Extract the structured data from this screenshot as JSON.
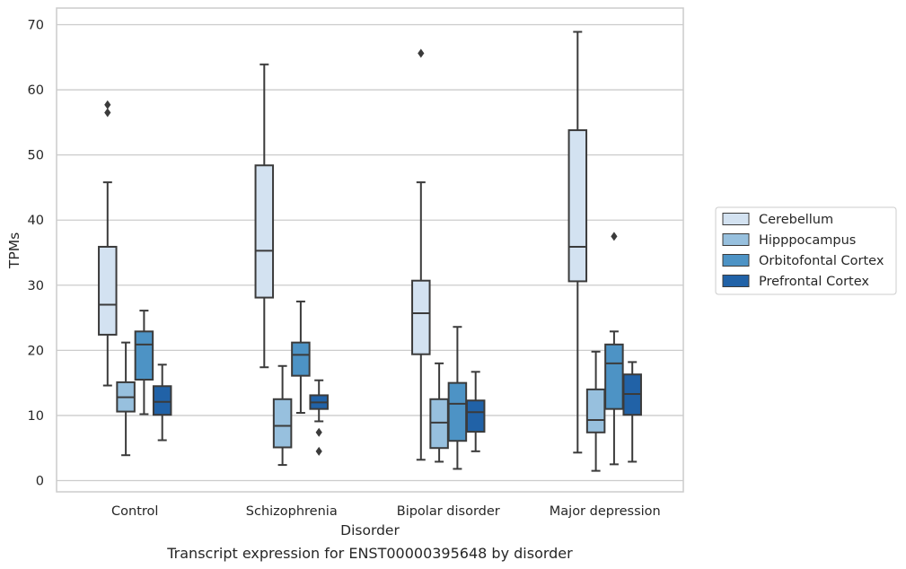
{
  "chart_data": {
    "type": "box",
    "caption": "Transcript expression for ENST00000395648 by disorder",
    "xlabel": "Disorder",
    "ylabel": "TPMs",
    "ylim": [
      -1.6,
      72.5
    ],
    "yticks": [
      0,
      10,
      20,
      30,
      40,
      50,
      60,
      70
    ],
    "grid": "horizontal",
    "legend_position": "right",
    "categories": [
      "Control",
      "Schizophrenia",
      "Bipolar disorder",
      "Major depression"
    ],
    "series": [
      {
        "name": "Cerebellum",
        "color": "#d3e2f1",
        "boxes": [
          {
            "whisker_low": 14.6,
            "q1": 22.4,
            "median": 27.0,
            "q3": 35.9,
            "whisker_high": 45.8,
            "outliers": [
              56.5,
              57.7
            ]
          },
          {
            "whisker_low": 17.4,
            "q1": 28.1,
            "median": 35.3,
            "q3": 48.4,
            "whisker_high": 63.9,
            "outliers": []
          },
          {
            "whisker_low": 3.2,
            "q1": 19.4,
            "median": 25.7,
            "q3": 30.7,
            "whisker_high": 45.8,
            "outliers": [
              65.6
            ]
          },
          {
            "whisker_low": 4.3,
            "q1": 30.6,
            "median": 35.9,
            "q3": 53.8,
            "whisker_high": 68.9,
            "outliers": []
          }
        ]
      },
      {
        "name": "Hipppocampus",
        "color": "#97c0de",
        "boxes": [
          {
            "whisker_low": 3.9,
            "q1": 10.6,
            "median": 12.8,
            "q3": 15.1,
            "whisker_high": 21.2,
            "outliers": []
          },
          {
            "whisker_low": 2.4,
            "q1": 5.1,
            "median": 8.4,
            "q3": 12.5,
            "whisker_high": 17.6,
            "outliers": []
          },
          {
            "whisker_low": 2.9,
            "q1": 5.0,
            "median": 8.9,
            "q3": 12.5,
            "whisker_high": 18.0,
            "outliers": []
          },
          {
            "whisker_low": 1.5,
            "q1": 7.4,
            "median": 9.3,
            "q3": 14.0,
            "whisker_high": 19.8,
            "outliers": []
          }
        ]
      },
      {
        "name": "Orbitofontal Cortex",
        "color": "#4d93c5",
        "boxes": [
          {
            "whisker_low": 10.2,
            "q1": 15.5,
            "median": 20.9,
            "q3": 22.9,
            "whisker_high": 26.1,
            "outliers": []
          },
          {
            "whisker_low": 10.4,
            "q1": 16.1,
            "median": 19.3,
            "q3": 21.2,
            "whisker_high": 27.5,
            "outliers": []
          },
          {
            "whisker_low": 1.8,
            "q1": 6.1,
            "median": 11.8,
            "q3": 15.0,
            "whisker_high": 23.6,
            "outliers": []
          },
          {
            "whisker_low": 2.5,
            "q1": 11.0,
            "median": 18.0,
            "q3": 20.9,
            "whisker_high": 22.9,
            "outliers": [
              37.5
            ]
          }
        ]
      },
      {
        "name": "Prefrontal Cortex",
        "color": "#2162a7",
        "boxes": [
          {
            "whisker_low": 6.2,
            "q1": 10.1,
            "median": 12.1,
            "q3": 14.5,
            "whisker_high": 17.8,
            "outliers": []
          },
          {
            "whisker_low": 9.1,
            "q1": 11.0,
            "median": 12.0,
            "q3": 13.1,
            "whisker_high": 15.4,
            "outliers": [
              4.5,
              7.4
            ]
          },
          {
            "whisker_low": 4.5,
            "q1": 7.5,
            "median": 10.5,
            "q3": 12.3,
            "whisker_high": 16.7,
            "outliers": []
          },
          {
            "whisker_low": 2.9,
            "q1": 10.1,
            "median": 13.3,
            "q3": 16.3,
            "whisker_high": 18.2,
            "outliers": []
          }
        ]
      }
    ]
  }
}
